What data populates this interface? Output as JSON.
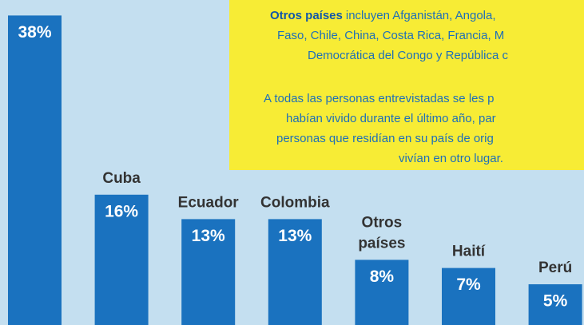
{
  "chart_data": {
    "type": "bar",
    "categories": [
      null,
      "Cuba",
      "Ecuador",
      "Colombia",
      "Otros países",
      "Haití",
      "Perú"
    ],
    "values": [
      38,
      16,
      13,
      13,
      8,
      7,
      5
    ],
    "value_labels": [
      "38%",
      "16%",
      "13%",
      "13%",
      "8%",
      "7%",
      "5%"
    ],
    "color": "#1a72bf",
    "background": "#c4dff0",
    "note": {
      "color": "#f7ec35",
      "lead": "Otros países",
      "lines": [
        "incluyen Afganistán, Angola,",
        "Faso, Chile, China, Costa Rica, Francia, M",
        "Democrática del Congo y República c",
        "A todas las personas entrevistadas se les p",
        "habían vivido durante el último año, par",
        "personas que residían en su país de orig",
        "vivían en otro lugar."
      ]
    }
  }
}
